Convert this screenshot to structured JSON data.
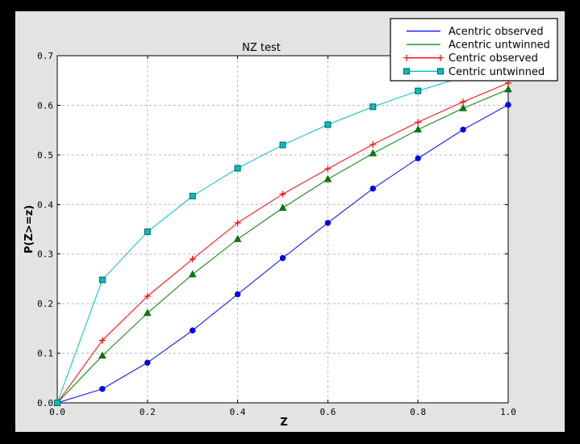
{
  "window": {
    "background_color": "#000000",
    "figure_background_color": "#e3e3e3"
  },
  "chart_data": {
    "type": "line",
    "title": "NZ test",
    "xlabel": "Z",
    "ylabel": "P(Z>=z)",
    "xlim": [
      0.0,
      1.0
    ],
    "ylim": [
      0.0,
      0.7
    ],
    "grid": true,
    "legend_position": "upper right",
    "x": [
      0.0,
      0.1,
      0.2,
      0.3,
      0.4,
      0.5,
      0.6,
      0.7,
      0.8,
      0.9,
      1.0
    ],
    "xticks": [
      0.0,
      0.2,
      0.4,
      0.6,
      0.8,
      1.0
    ],
    "xtick_labels": [
      "0.0",
      "0.2",
      "0.4",
      "0.6",
      "0.8",
      "1.0"
    ],
    "yticks": [
      0.0,
      0.1,
      0.2,
      0.3,
      0.4,
      0.5,
      0.6,
      0.7
    ],
    "ytick_labels": [
      "0.0",
      "0.1",
      "0.2",
      "0.3",
      "0.4",
      "0.5",
      "0.6",
      "0.7"
    ],
    "colors": {
      "axes_bg": "#ffffff",
      "grid": "#b8b8b8",
      "spine": "#000000",
      "legend_bg": "#ffffff",
      "legend_border": "#000000"
    },
    "series": [
      {
        "name": "Acentric observed",
        "color": "#0000ff",
        "marker": "circle",
        "legend_marker": false,
        "values": [
          0.0,
          0.028,
          0.081,
          0.146,
          0.219,
          0.292,
          0.363,
          0.432,
          0.493,
          0.551,
          0.601
        ]
      },
      {
        "name": "Acentric untwinned",
        "color": "#008000",
        "marker": "triangle",
        "legend_marker": false,
        "values": [
          0.0,
          0.095,
          0.181,
          0.259,
          0.33,
          0.393,
          0.451,
          0.503,
          0.551,
          0.594,
          0.632
        ]
      },
      {
        "name": "Centric observed",
        "color": "#ff0000",
        "marker": "plus",
        "legend_marker": true,
        "values": [
          0.0,
          0.126,
          0.215,
          0.29,
          0.363,
          0.421,
          0.472,
          0.521,
          0.566,
          0.607,
          0.645
        ]
      },
      {
        "name": "Centric untwinned",
        "color": "#00bfbf",
        "marker": "square",
        "legend_marker": true,
        "values": [
          0.0,
          0.248,
          0.345,
          0.417,
          0.473,
          0.52,
          0.561,
          0.597,
          0.629,
          0.657,
          0.683
        ]
      }
    ]
  }
}
